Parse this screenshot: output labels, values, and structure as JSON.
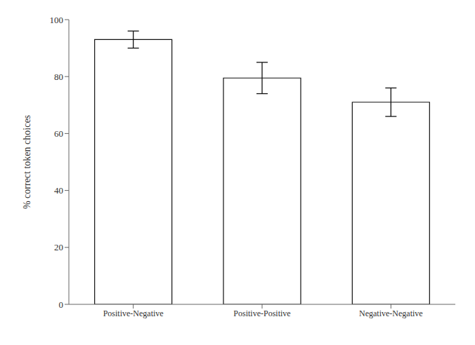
{
  "chart_data": {
    "type": "bar",
    "categories": [
      "Positive-Negative",
      "Positive-Positive",
      "Negative-Negative"
    ],
    "values": [
      93.0,
      79.5,
      71.0
    ],
    "errors": [
      3.0,
      5.5,
      5.0
    ],
    "color": "#ffffff",
    "ylabel": "% correct token choices",
    "ylim": [
      0,
      100
    ],
    "yticks": [
      0,
      20,
      40,
      60,
      80,
      100
    ],
    "grid": false
  }
}
